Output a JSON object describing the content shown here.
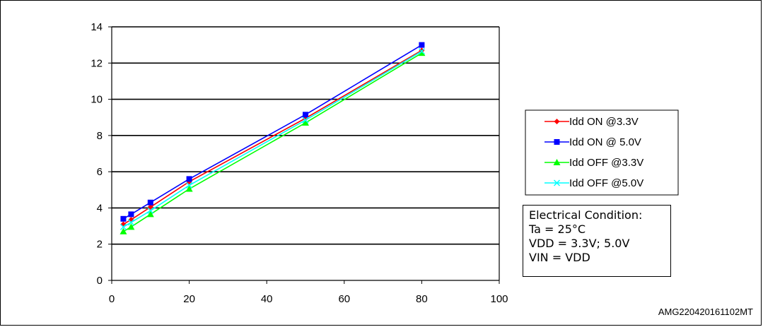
{
  "chart_data": {
    "type": "line",
    "title": "",
    "xlabel": "",
    "ylabel": "",
    "xlim": [
      0,
      100
    ],
    "ylim": [
      0,
      14
    ],
    "xticks": [
      0,
      20,
      40,
      60,
      80,
      100
    ],
    "yticks": [
      0,
      2,
      4,
      6,
      8,
      10,
      12,
      14
    ],
    "grid": "horizontal",
    "legend_position": "right",
    "series": [
      {
        "name": "Idd ON @3.3V",
        "color": "#ff0000",
        "marker": "diamond",
        "x": [
          3,
          5,
          10,
          20,
          50,
          80
        ],
        "y": [
          3.1,
          3.35,
          4.05,
          5.45,
          8.95,
          12.7
        ]
      },
      {
        "name": "Idd ON @ 5.0V",
        "color": "#0000ff",
        "marker": "square",
        "x": [
          3,
          5,
          10,
          20,
          50,
          80
        ],
        "y": [
          3.4,
          3.65,
          4.3,
          5.6,
          9.15,
          13.0
        ]
      },
      {
        "name": "Idd OFF @3.3V",
        "color": "#00ff00",
        "marker": "triangle",
        "x": [
          3,
          5,
          10,
          20,
          50,
          80
        ],
        "y": [
          2.7,
          2.95,
          3.65,
          5.05,
          8.7,
          12.55
        ]
      },
      {
        "name": "Idd OFF @5.0V",
        "color": "#00ffff",
        "marker": "x",
        "x": [
          3,
          5,
          10,
          20,
          50,
          80
        ],
        "y": [
          2.95,
          3.2,
          3.85,
          5.25,
          8.85,
          12.65
        ]
      }
    ]
  },
  "condition_box": {
    "line1": "Electrical Condition:",
    "line2": "Ta = 25°C",
    "line3": "VDD = 3.3V; 5.0V",
    "line4": "VIN = VDD"
  },
  "watermark": "AMG220420161102MT"
}
